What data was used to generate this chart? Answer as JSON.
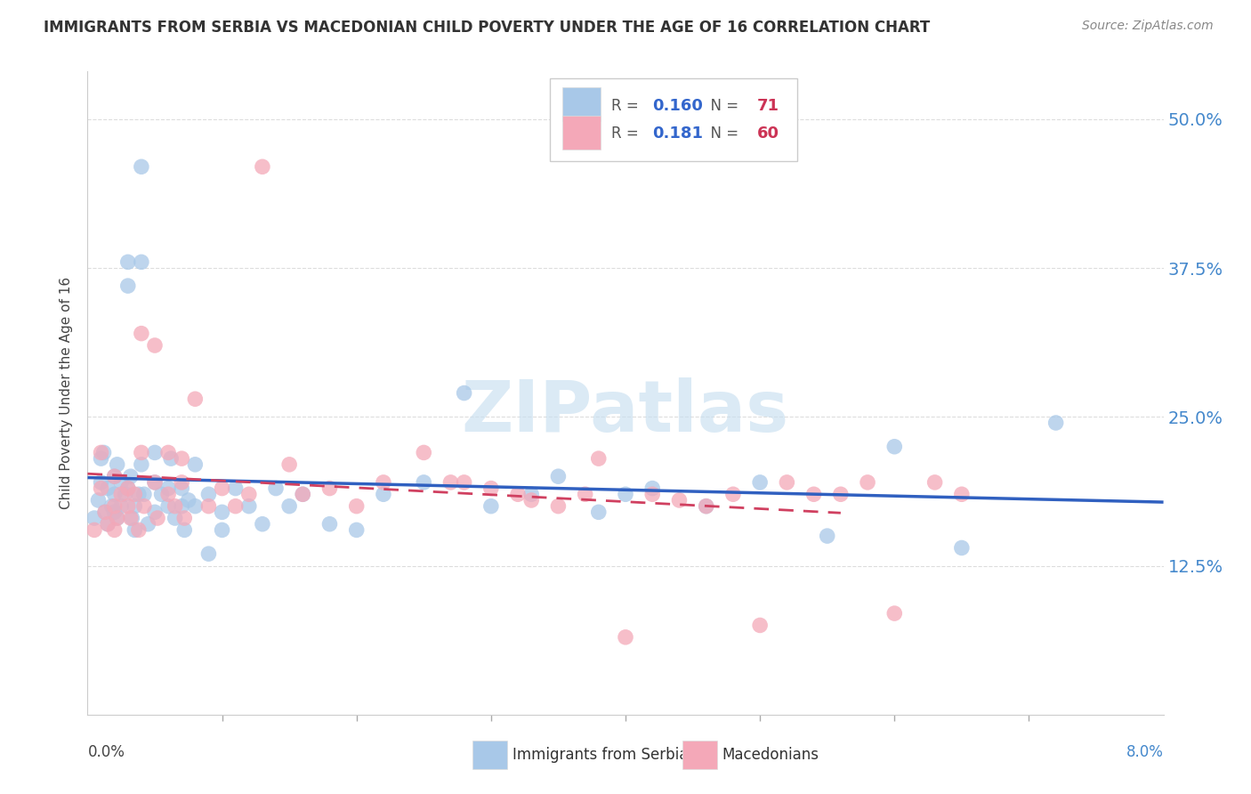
{
  "title": "IMMIGRANTS FROM SERBIA VS MACEDONIAN CHILD POVERTY UNDER THE AGE OF 16 CORRELATION CHART",
  "source": "Source: ZipAtlas.com",
  "ylabel": "Child Poverty Under the Age of 16",
  "yticks": [
    "12.5%",
    "25.0%",
    "37.5%",
    "50.0%"
  ],
  "ytick_vals": [
    0.125,
    0.25,
    0.375,
    0.5
  ],
  "xlim": [
    0.0,
    0.08
  ],
  "ylim": [
    0.0,
    0.54
  ],
  "watermark": "ZIPatlas",
  "series1_color": "#a8c8e8",
  "series2_color": "#f4a8b8",
  "series1_line_color": "#3060c0",
  "series2_line_color": "#d04060",
  "series2_line_style": "--",
  "background_color": "#ffffff",
  "grid_color": "#dddddd",
  "series1_label": "Immigrants from Serbia",
  "series2_label": "Macedonians",
  "series1_R": "0.160",
  "series1_N": "71",
  "series2_R": "0.181",
  "series2_N": "60",
  "r_color": "#3366cc",
  "n_color": "#cc3355",
  "title_color": "#333333",
  "source_color": "#888888",
  "series1_x": [
    0.0005,
    0.0008,
    0.001,
    0.001,
    0.0012,
    0.0013,
    0.0015,
    0.0015,
    0.0018,
    0.002,
    0.002,
    0.002,
    0.0022,
    0.0022,
    0.0025,
    0.0025,
    0.0028,
    0.003,
    0.003,
    0.003,
    0.0032,
    0.0033,
    0.0035,
    0.0035,
    0.0038,
    0.004,
    0.004,
    0.004,
    0.0042,
    0.0045,
    0.005,
    0.005,
    0.005,
    0.0055,
    0.006,
    0.006,
    0.0062,
    0.0065,
    0.007,
    0.007,
    0.0072,
    0.0075,
    0.008,
    0.008,
    0.009,
    0.009,
    0.01,
    0.01,
    0.011,
    0.012,
    0.013,
    0.014,
    0.015,
    0.016,
    0.018,
    0.02,
    0.022,
    0.025,
    0.028,
    0.03,
    0.033,
    0.035,
    0.038,
    0.04,
    0.042,
    0.046,
    0.05,
    0.055,
    0.06,
    0.065,
    0.072
  ],
  "series1_y": [
    0.165,
    0.18,
    0.195,
    0.215,
    0.22,
    0.17,
    0.19,
    0.16,
    0.175,
    0.2,
    0.185,
    0.17,
    0.21,
    0.165,
    0.195,
    0.175,
    0.185,
    0.38,
    0.36,
    0.19,
    0.2,
    0.165,
    0.175,
    0.155,
    0.185,
    0.46,
    0.38,
    0.21,
    0.185,
    0.16,
    0.22,
    0.195,
    0.17,
    0.185,
    0.19,
    0.175,
    0.215,
    0.165,
    0.19,
    0.175,
    0.155,
    0.18,
    0.21,
    0.175,
    0.185,
    0.135,
    0.17,
    0.155,
    0.19,
    0.175,
    0.16,
    0.19,
    0.175,
    0.185,
    0.16,
    0.155,
    0.185,
    0.195,
    0.27,
    0.175,
    0.185,
    0.2,
    0.17,
    0.185,
    0.19,
    0.175,
    0.195,
    0.15,
    0.225,
    0.14,
    0.245
  ],
  "series2_x": [
    0.0005,
    0.001,
    0.001,
    0.0013,
    0.0015,
    0.002,
    0.002,
    0.002,
    0.0022,
    0.0025,
    0.003,
    0.003,
    0.0032,
    0.0035,
    0.0038,
    0.004,
    0.004,
    0.0042,
    0.005,
    0.005,
    0.0052,
    0.006,
    0.006,
    0.0065,
    0.007,
    0.007,
    0.0072,
    0.008,
    0.009,
    0.01,
    0.011,
    0.012,
    0.013,
    0.015,
    0.016,
    0.018,
    0.02,
    0.022,
    0.025,
    0.027,
    0.028,
    0.03,
    0.032,
    0.033,
    0.035,
    0.037,
    0.038,
    0.04,
    0.042,
    0.044,
    0.046,
    0.048,
    0.05,
    0.052,
    0.054,
    0.056,
    0.058,
    0.06,
    0.063,
    0.065
  ],
  "series2_y": [
    0.155,
    0.19,
    0.22,
    0.17,
    0.16,
    0.2,
    0.175,
    0.155,
    0.165,
    0.185,
    0.19,
    0.175,
    0.165,
    0.185,
    0.155,
    0.32,
    0.22,
    0.175,
    0.31,
    0.195,
    0.165,
    0.22,
    0.185,
    0.175,
    0.215,
    0.195,
    0.165,
    0.265,
    0.175,
    0.19,
    0.175,
    0.185,
    0.46,
    0.21,
    0.185,
    0.19,
    0.175,
    0.195,
    0.22,
    0.195,
    0.195,
    0.19,
    0.185,
    0.18,
    0.175,
    0.185,
    0.215,
    0.065,
    0.185,
    0.18,
    0.175,
    0.185,
    0.075,
    0.195,
    0.185,
    0.185,
    0.195,
    0.085,
    0.195,
    0.185
  ]
}
